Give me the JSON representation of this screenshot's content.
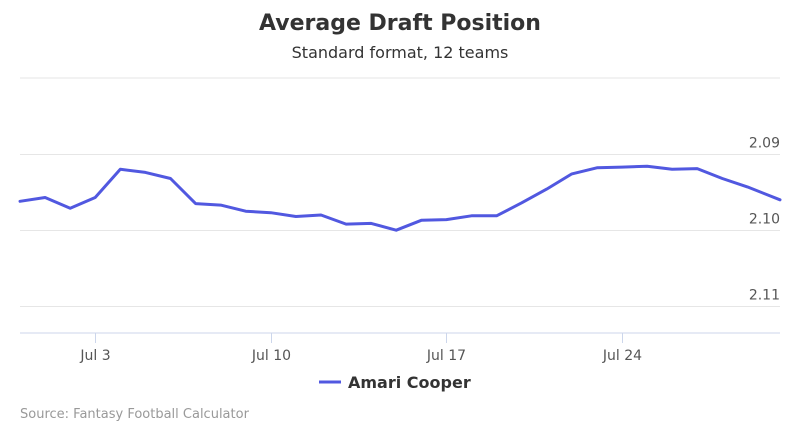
{
  "chart_data": {
    "type": "line",
    "title": "Average Draft Position",
    "subtitle": "Standard format, 12 teams",
    "x_tick_labels": [
      "Jul 3",
      "Jul 10",
      "Jul 17",
      "Jul 24"
    ],
    "x_tick_days": [
      3,
      10,
      17,
      24
    ],
    "y_tick_labels": [
      "2.09",
      "2.10",
      "2.11"
    ],
    "y_tick_values": [
      2.09,
      2.1,
      2.11
    ],
    "ylim": [
      2.08,
      2.1135
    ],
    "xlim": [
      0,
      30.3
    ],
    "y_reversed": true,
    "grid": true,
    "legend_position": "bottom-center",
    "series": [
      {
        "name": "Amari Cooper",
        "color": "#5158e0",
        "x": [
          0,
          1,
          2,
          3,
          4,
          5,
          6,
          7,
          8,
          9,
          10,
          11,
          12,
          13,
          14,
          15,
          16,
          17,
          18,
          19,
          20,
          21,
          22,
          23,
          24,
          25,
          26,
          27,
          28,
          29,
          30.3
        ],
        "values": [
          2.0962,
          2.0957,
          2.0971,
          2.0957,
          2.092,
          2.0924,
          2.0932,
          2.0965,
          2.0967,
          2.0975,
          2.0977,
          2.0982,
          2.098,
          2.0992,
          2.0991,
          2.1,
          2.0987,
          2.0986,
          2.0981,
          2.0981,
          2.0964,
          2.0946,
          2.0926,
          2.0918,
          2.0917,
          2.0916,
          2.092,
          2.0919,
          2.0932,
          2.0943,
          2.096
        ]
      }
    ]
  },
  "credit": "Source: Fantasy Football Calculator"
}
